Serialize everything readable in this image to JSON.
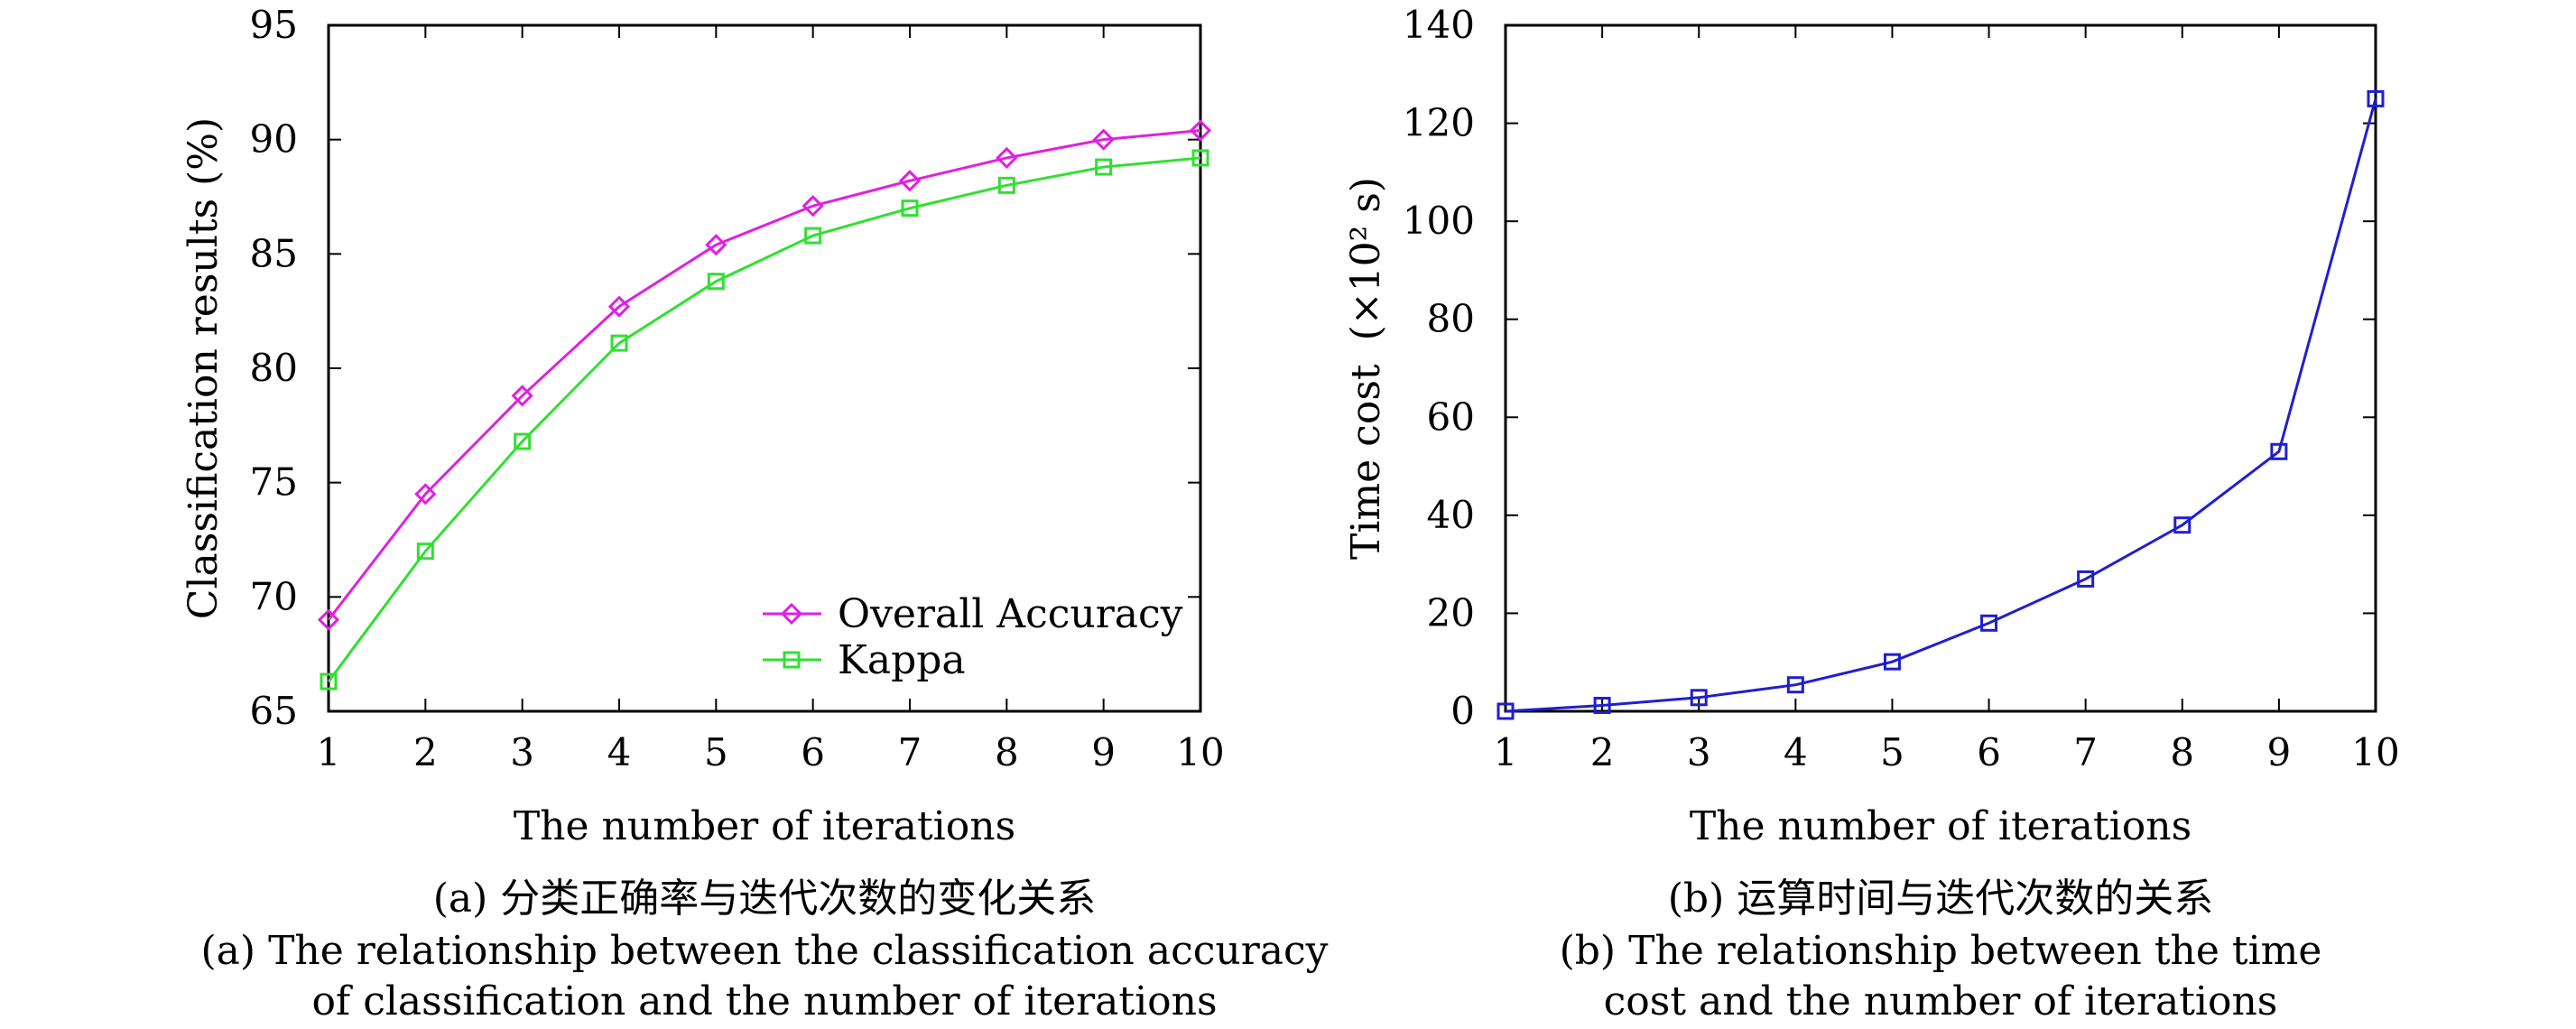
{
  "chart_data": [
    {
      "type": "line",
      "xlabel": "The number of iterations",
      "ylabel": "Classification results (%)",
      "xlim": [
        1,
        10
      ],
      "ylim": [
        65,
        95
      ],
      "x_ticks": [
        "1",
        "2",
        "3",
        "4",
        "5",
        "6",
        "7",
        "8",
        "9",
        "10"
      ],
      "y_ticks": [
        "65",
        "70",
        "75",
        "80",
        "85",
        "90",
        "95"
      ],
      "grid": false,
      "legend": "bottom-right",
      "x": [
        1,
        2,
        3,
        4,
        5,
        6,
        7,
        8,
        9,
        10
      ],
      "series": [
        {
          "name": "Overall Accuracy",
          "marker": "diamond",
          "color": "#e020e0",
          "values": [
            69.0,
            74.5,
            78.8,
            82.7,
            85.4,
            87.1,
            88.2,
            89.2,
            90.0,
            90.4
          ]
        },
        {
          "name": "Kappa",
          "marker": "square",
          "color": "#30e030",
          "values": [
            66.3,
            72.0,
            76.8,
            81.1,
            83.8,
            85.8,
            87.0,
            88.0,
            88.8,
            89.2
          ]
        }
      ],
      "caption_cn": "(a) 分类正确率与迭代次数的变化关系",
      "caption_en_1": "(a) The relationship between the classification accuracy",
      "caption_en_2": "of classification and the number of iterations"
    },
    {
      "type": "line",
      "xlabel": "The number of iterations",
      "ylabel_main": "Time cost",
      "ylabel_unit": "(×10² s)",
      "xlim": [
        1,
        10
      ],
      "ylim": [
        0,
        140
      ],
      "x_ticks": [
        "1",
        "2",
        "3",
        "4",
        "5",
        "6",
        "7",
        "8",
        "9",
        "10"
      ],
      "y_ticks": [
        "0",
        "20",
        "40",
        "60",
        "80",
        "100",
        "120",
        "140"
      ],
      "grid": false,
      "x": [
        1,
        2,
        3,
        4,
        5,
        6,
        7,
        8,
        9,
        10
      ],
      "series": [
        {
          "marker": "square",
          "color": "#1f1fd0",
          "values": [
            0.0,
            1.2,
            2.8,
            5.4,
            10.1,
            18.0,
            27.0,
            38.0,
            53.0,
            125.0
          ]
        }
      ],
      "caption_cn": "(b) 运算时间与迭代次数的关系",
      "caption_en_1": "(b) The relationship between the time",
      "caption_en_2": "cost and the number of iterations"
    }
  ]
}
